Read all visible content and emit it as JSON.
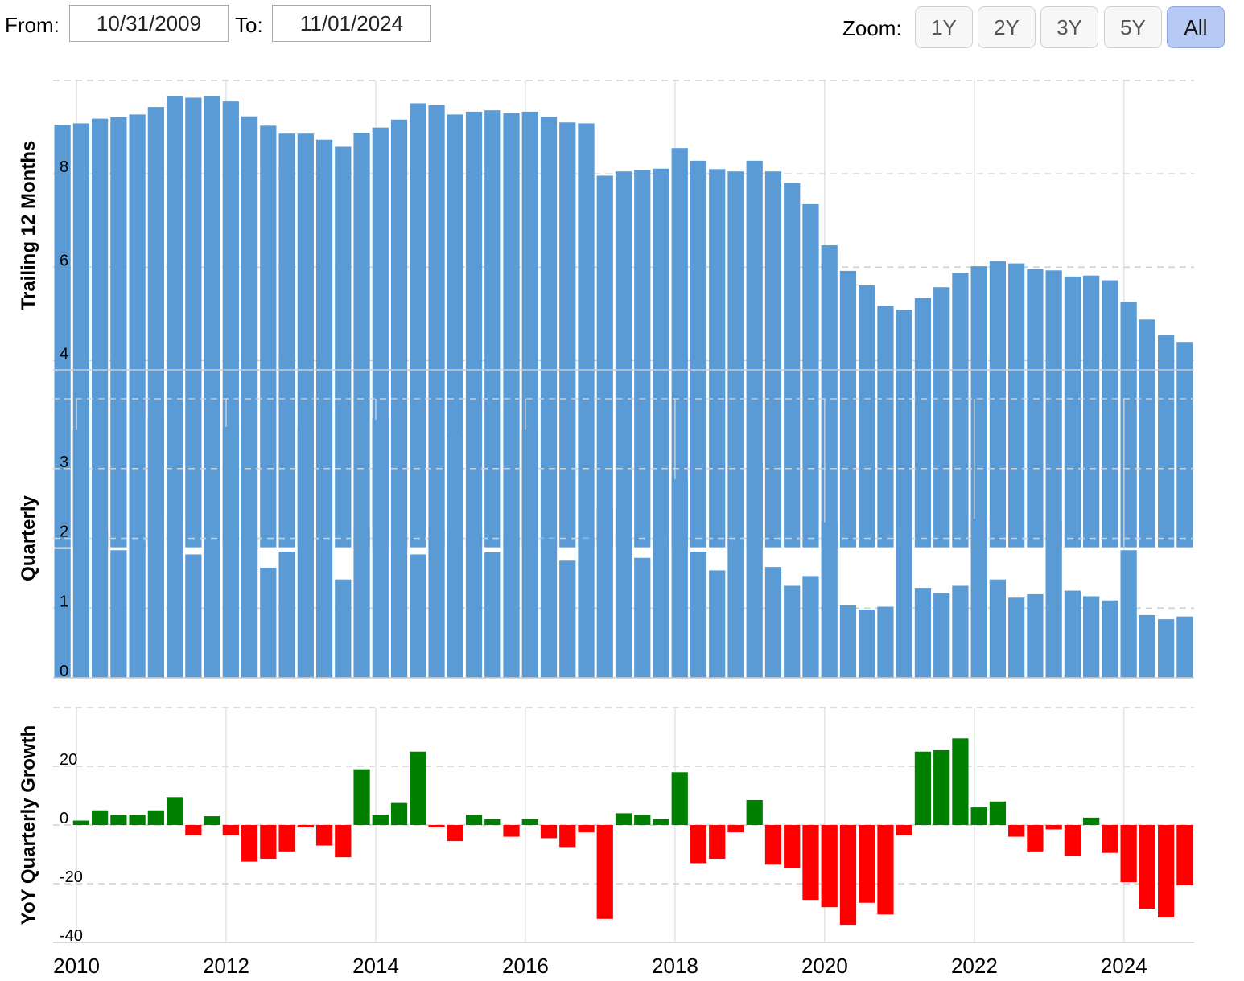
{
  "controls": {
    "from_label": "From:",
    "from_value": "10/31/2009",
    "to_label": "To:",
    "to_value": "11/01/2024",
    "zoom_label": "Zoom:",
    "zoom_options": [
      "1Y",
      "2Y",
      "3Y",
      "5Y",
      "All"
    ],
    "zoom_selected": "All"
  },
  "colors": {
    "bar_blue": "#5b9bd5",
    "positive": "#008000",
    "negative": "#ff0000"
  },
  "chart_data": [
    {
      "type": "bar",
      "ylabel": "Trailing 12 Months",
      "yticks": [
        4,
        6,
        8
      ],
      "ylim": [
        3.8,
        10.0
      ],
      "x_start": "2009-12-31",
      "x_step": "quarter",
      "values": [
        9.05,
        9.08,
        9.18,
        9.21,
        9.27,
        9.43,
        9.66,
        9.63,
        9.66,
        9.55,
        9.23,
        9.03,
        8.86,
        8.86,
        8.73,
        8.58,
        8.88,
        8.99,
        9.16,
        9.51,
        9.47,
        9.27,
        9.33,
        9.36,
        9.3,
        9.33,
        9.22,
        9.1,
        9.08,
        7.96,
        8.05,
        8.08,
        8.11,
        8.55,
        8.28,
        8.1,
        8.05,
        8.28,
        8.05,
        7.8,
        7.35,
        6.47,
        5.92,
        5.61,
        5.17,
        5.09,
        5.34,
        5.57,
        5.88,
        6.02,
        6.13,
        6.08,
        5.96,
        5.93,
        5.8,
        5.82,
        5.72,
        5.26,
        4.88,
        4.55,
        4.4
      ]
    },
    {
      "type": "bar",
      "ylabel": "Quarterly",
      "yticks": [
        0,
        1,
        2,
        3
      ],
      "ylim": [
        0,
        4.0
      ],
      "x_start": "2009-12-31",
      "x_step": "quarter",
      "values": [
        1.85,
        3.55,
        2.1,
        1.83,
        1.92,
        3.72,
        2.32,
        1.77,
        1.97,
        3.6,
        2.04,
        1.58,
        1.81,
        3.58,
        1.9,
        1.41,
        2.12,
        3.7,
        2.02,
        1.77,
        2.11,
        3.5,
        2.08,
        1.8,
        2.03,
        3.55,
        2.0,
        1.68,
        2.0,
        2.43,
        2.07,
        1.72,
        2.02,
        2.85,
        1.81,
        1.54,
        1.98,
        3.08,
        1.59,
        1.32,
        1.46,
        2.23,
        1.04,
        0.98,
        1.02,
        2.15,
        1.29,
        1.21,
        1.32,
        2.28,
        1.41,
        1.15,
        1.2,
        2.25,
        1.25,
        1.17,
        1.11,
        1.83,
        0.9,
        0.84,
        0.88
      ]
    },
    {
      "type": "bar",
      "ylabel": "YoY Quarterly Growth",
      "yticks": [
        -40,
        -20,
        0,
        20
      ],
      "ylim": [
        -40,
        40
      ],
      "x_start": "2009-12-31",
      "x_step": "quarter",
      "values": [
        null,
        1.5,
        5.0,
        3.5,
        3.5,
        5.0,
        9.5,
        -3.5,
        3.0,
        -3.5,
        -12.5,
        -11.5,
        -9.0,
        -0.8,
        -7.0,
        -11.0,
        19.0,
        3.5,
        7.5,
        25.0,
        -0.8,
        -5.5,
        3.5,
        2.0,
        -4.0,
        2.0,
        -4.5,
        -7.5,
        -2.5,
        -32.0,
        4.0,
        3.5,
        2.0,
        18.0,
        -13.0,
        -11.5,
        -2.5,
        8.5,
        -13.5,
        -14.8,
        -25.5,
        -28.0,
        -34.0,
        -26.5,
        -30.5,
        -3.5,
        25.0,
        25.5,
        29.5,
        6.0,
        8.0,
        -4.0,
        -9.0,
        -1.5,
        -10.5,
        2.5,
        -9.5,
        -19.5,
        -28.5,
        -31.5,
        -20.5
      ]
    }
  ],
  "x_axis": {
    "tick_labels": [
      "2010",
      "2012",
      "2014",
      "2016",
      "2018",
      "2020",
      "2022",
      "2024"
    ],
    "tick_years": [
      2010,
      2012,
      2014,
      2016,
      2018,
      2020,
      2022,
      2024
    ]
  }
}
